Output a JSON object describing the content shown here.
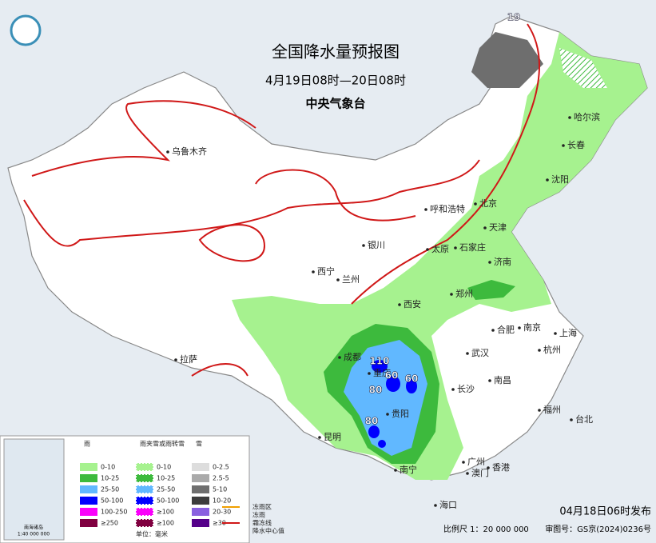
{
  "header": {
    "title": "全国降水量预报图",
    "subtitle": "4月19日08时—20日08时",
    "issuer": "中央气象台"
  },
  "cities": [
    "乌鲁木齐",
    "哈尔滨",
    "长春",
    "沈阳",
    "呼和浩特",
    "北京",
    "天津",
    "石家庄",
    "太原",
    "银川",
    "济南",
    "西宁",
    "兰州",
    "郑州",
    "西安",
    "合肥",
    "南京",
    "上海",
    "武汉",
    "杭州",
    "拉萨",
    "成都",
    "重庆",
    "长沙",
    "南昌",
    "贵阳",
    "福州",
    "台北",
    "昆明",
    "南宁",
    "广州",
    "澳门",
    "香港",
    "海口"
  ],
  "center_values": [
    110,
    60,
    60,
    80,
    80,
    19
  ],
  "inset": {
    "label": "南海诸岛",
    "scale": "1:40 000 000"
  },
  "legend": {
    "rain": {
      "title": "雨",
      "items": [
        {
          "label": "0-10",
          "color": "#a6f28f"
        },
        {
          "label": "10-25",
          "color": "#3dba3d"
        },
        {
          "label": "25-50",
          "color": "#61b8ff"
        },
        {
          "label": "50-100",
          "color": "#0000fe"
        },
        {
          "label": "100-250",
          "color": "#fa00fa"
        },
        {
          "label": "≥250",
          "color": "#800040"
        }
      ]
    },
    "mixed": {
      "title": "雨夹雪或雨转雪",
      "items": [
        {
          "label": "0-10",
          "color": "#a6f28f"
        },
        {
          "label": "10-25",
          "color": "#3dba3d"
        },
        {
          "label": "25-50",
          "color": "#61b8ff"
        },
        {
          "label": "50-100",
          "color": "#0000fe"
        },
        {
          "label": "≥100",
          "color": "#fa00fa"
        },
        {
          "label": "≥100",
          "color": "#800040"
        }
      ]
    },
    "snow": {
      "title": "雪",
      "items": [
        {
          "label": "0-2.5",
          "color": "#dddddd"
        },
        {
          "label": "2.5-5",
          "color": "#aaaaaa"
        },
        {
          "label": "5-10",
          "color": "#6e6e6e"
        },
        {
          "label": "10-20",
          "color": "#3c3c3c"
        },
        {
          "label": "20-30",
          "color": "#8a60e0"
        },
        {
          "label": "≥30",
          "color": "#55008a"
        }
      ]
    },
    "unit": "单位：毫米",
    "symbols": [
      "冻雨区",
      "冻雨",
      "霜冻线",
      "降水中心值"
    ]
  },
  "footer": {
    "issued": "04月18日06时发布",
    "scale": "比例尺 1：20 000 000",
    "review": "审图号：GS京(2024)0236号"
  }
}
